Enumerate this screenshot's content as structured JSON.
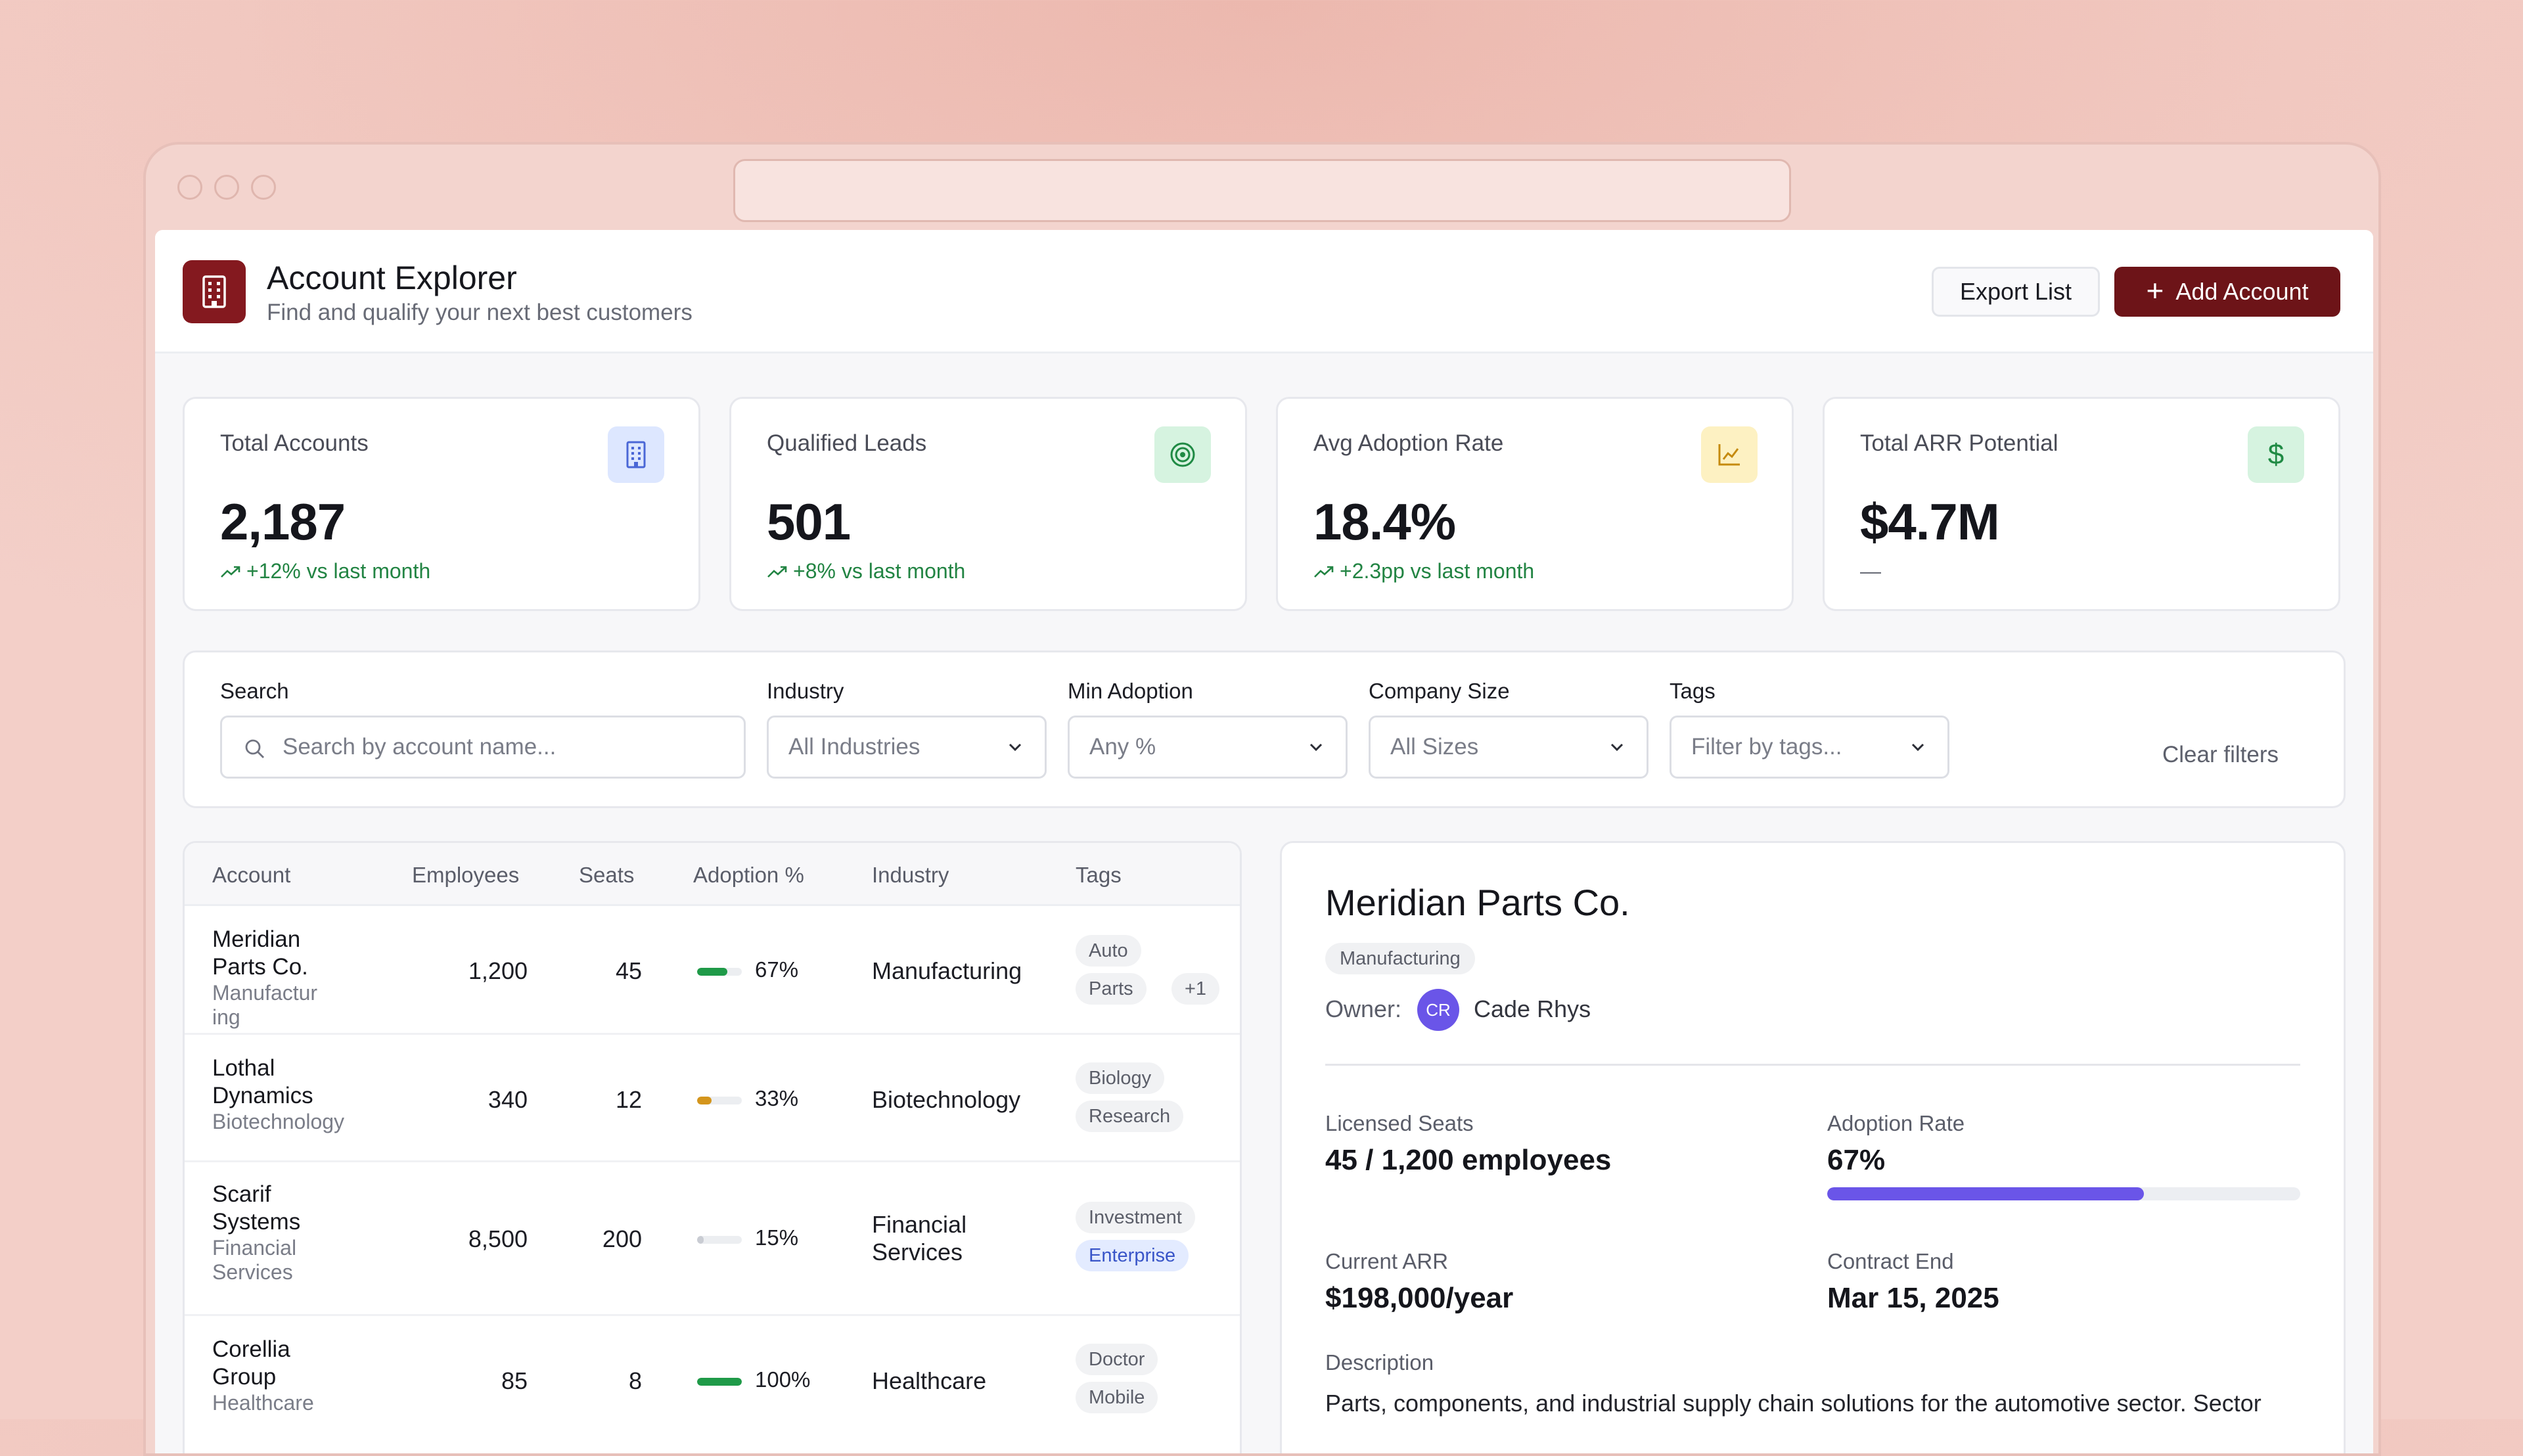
{
  "header": {
    "title": "Account Explorer",
    "subtitle": "Find and qualify your next best customers",
    "export_label": "Export List",
    "add_label": "Add Account"
  },
  "stats": [
    {
      "label": "Total Accounts",
      "value": "2,187",
      "change": "+12% vs last month",
      "icon": "building-icon"
    },
    {
      "label": "Qualified Leads",
      "value": "501",
      "change": "+8% vs last month",
      "icon": "target-icon"
    },
    {
      "label": "Avg Adoption Rate",
      "value": "18.4%",
      "change": "+2.3pp vs last month",
      "icon": "line-chart-icon"
    },
    {
      "label": "Total ARR Potential",
      "value": "$4.7M",
      "change": "—",
      "icon": "dollar-icon"
    }
  ],
  "filters": {
    "search_label": "Search",
    "search_placeholder": "Search by account name...",
    "industry_label": "Industry",
    "industry_value": "All Industries",
    "adoption_label": "Min Adoption",
    "adoption_value": "Any %",
    "size_label": "Company Size",
    "size_value": "All Sizes",
    "tags_label": "Tags",
    "tags_value": "Filter by tags...",
    "clear_label": "Clear filters"
  },
  "table": {
    "columns": [
      "Account",
      "Employees",
      "Seats",
      "Adoption %",
      "Industry",
      "Tags"
    ],
    "rows": [
      {
        "name_lines": [
          "Meridian",
          "Parts Co."
        ],
        "sub_lines": [
          "Manufactur",
          "ing"
        ],
        "employees": "1,200",
        "seats": "45",
        "adoption": "67%",
        "adoption_frac": 0.67,
        "bar_color": "#1f9a48",
        "industry_lines": [
          "Manufacturing"
        ],
        "tags": [
          "Auto",
          "Parts",
          "+1"
        ]
      },
      {
        "name_lines": [
          "Lothal",
          "Dynamics"
        ],
        "sub_lines": [
          "Biotechnology"
        ],
        "employees": "340",
        "seats": "12",
        "adoption": "33%",
        "adoption_frac": 0.33,
        "bar_color": "#d4951c",
        "industry_lines": [
          "Biotechnology"
        ],
        "tags": [
          "Biology",
          "Research"
        ]
      },
      {
        "name_lines": [
          "Scarif",
          "Systems"
        ],
        "sub_lines": [
          "Financial",
          "Services"
        ],
        "employees": "8,500",
        "seats": "200",
        "adoption": "15%",
        "adoption_frac": 0.15,
        "bar_color": "#c9ccd3",
        "industry_lines": [
          "Financial",
          "Services"
        ],
        "tags": [
          "Investment",
          "Enterprise"
        ]
      },
      {
        "name_lines": [
          "Corellia",
          "Group"
        ],
        "sub_lines": [
          "Healthcare"
        ],
        "employees": "85",
        "seats": "8",
        "adoption": "100%",
        "adoption_frac": 1.0,
        "bar_color": "#1f9a48",
        "industry_lines": [
          "Healthcare"
        ],
        "tags": [
          "Doctor",
          "Mobile"
        ]
      }
    ]
  },
  "detail": {
    "name": "Meridian Parts Co.",
    "industry_badge": "Manufacturing",
    "owner_label": "Owner:",
    "owner_initials": "CR",
    "owner_name": "Cade Rhys",
    "seats_label": "Licensed Seats",
    "seats_value": "45 / 1,200 employees",
    "adoption_label": "Adoption Rate",
    "adoption_value": "67%",
    "adoption_frac": 0.67,
    "arr_label": "Current ARR",
    "arr_value": "$198,000/year",
    "contract_label": "Contract End",
    "contract_value": "Mar 15, 2025",
    "description_label": "Description",
    "description": "Parts, components, and industrial supply chain solutions for the automotive sector. Sector"
  },
  "colors": {
    "brand": "#84191f",
    "primary_button": "#6d1418",
    "positive": "#228443",
    "accent": "#6a55e8"
  }
}
